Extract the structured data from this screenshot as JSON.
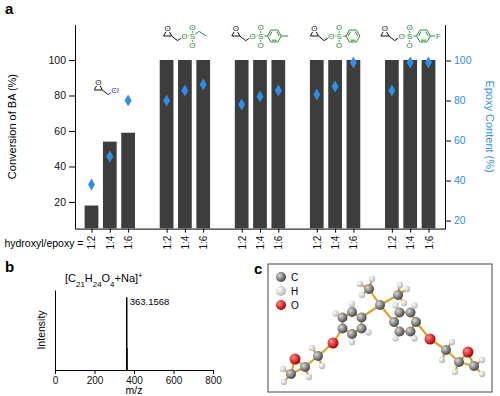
{
  "panel_labels": [
    "a",
    "b",
    "c"
  ],
  "chart_data": [
    {
      "type": "bar",
      "categories": [
        "1:2",
        "1:4",
        "1:6",
        "1:2",
        "1:4",
        "1:6",
        "1:2",
        "1:4",
        "1:6",
        "1:2",
        "1:4",
        "1:6",
        "1:2",
        "1:4",
        "1:6"
      ],
      "xlabel": "hydroxyl/epoxy =",
      "ylabel": "Conversion of BA (%)",
      "y2label": "Epoxy Content (%)",
      "ylim": [
        5,
        120
      ],
      "yticks": [
        20,
        40,
        60,
        80,
        100
      ],
      "y2lim": [
        16,
        118
      ],
      "y2ticks": [
        20,
        40,
        60,
        80,
        100
      ],
      "series": [
        {
          "type": "bar",
          "color": "#3d3d3d",
          "values": [
            18,
            54,
            59,
            100,
            100,
            100,
            100,
            100,
            100,
            100,
            100,
            100,
            100,
            100,
            100
          ]
        },
        {
          "type": "scatter",
          "axis": "y2",
          "marker": "diamond",
          "color": "#2f8fe6",
          "values": [
            38,
            52,
            80,
            80,
            85,
            88,
            78,
            82,
            85,
            83,
            87,
            99,
            85,
            99,
            99
          ]
        }
      ],
      "group_structures": [
        {
          "atoms": [
            "O",
            "Cl"
          ]
        },
        {
          "atoms": [
            "O",
            "O",
            "S",
            "O",
            "O"
          ]
        },
        {
          "atoms": [
            "O",
            "O",
            "S",
            "O",
            "O"
          ]
        },
        {
          "atoms": [
            "O",
            "O",
            "S",
            "O",
            "O"
          ]
        },
        {
          "atoms": [
            "O",
            "O",
            "S",
            "O",
            "O",
            "F"
          ]
        }
      ]
    },
    {
      "type": "bar",
      "x": [
        363.1568,
        364.1601
      ],
      "values": [
        100,
        30
      ],
      "color": "#000000",
      "xlim": [
        0,
        800
      ],
      "xticks": [
        0,
        200,
        400,
        600,
        800
      ],
      "ylim": [
        0,
        110
      ],
      "xlabel": "m/z",
      "ylabel": "Intensity",
      "tick_labels": "x",
      "annotations": [
        {
          "text": "[C21H24O4+Na]+"
        },
        {
          "text": "363.1568",
          "x": 363.1568
        }
      ]
    }
  ],
  "molecule": {
    "legend": [
      "C",
      "H",
      "O"
    ]
  }
}
